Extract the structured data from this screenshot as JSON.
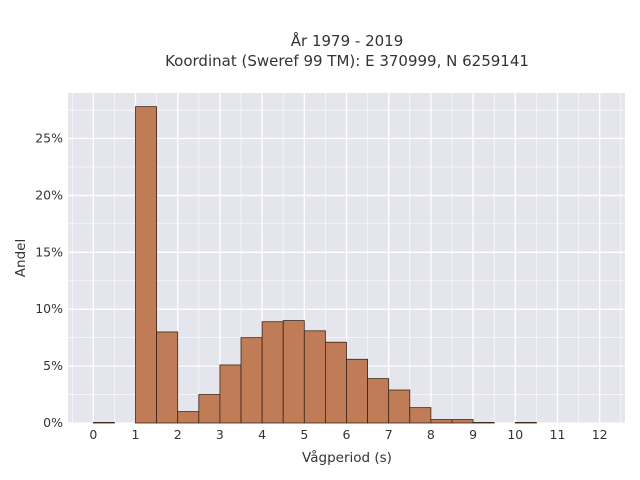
{
  "chart_data": {
    "type": "bar",
    "title_line1": "År 1979 - 2019",
    "title_line2": "Koordinat (Sweref 99 TM): E 370999, N 6259141",
    "xlabel": "Vågperiod (s)",
    "ylabel": "Andel",
    "bin_width": 0.5,
    "bin_starts": [
      0,
      0.5,
      1,
      1.5,
      2,
      2.5,
      3,
      3.5,
      4,
      4.5,
      5,
      5.5,
      6,
      6.5,
      7,
      7.5,
      8,
      8.5,
      9,
      9.5,
      10,
      10.5,
      11,
      11.5,
      12
    ],
    "values": [
      0.05,
      0,
      27.8,
      8.0,
      1.0,
      2.5,
      5.1,
      7.5,
      8.9,
      9.0,
      8.1,
      7.1,
      5.6,
      3.9,
      2.9,
      1.35,
      0.3,
      0.3,
      0.05,
      0,
      0.05,
      0,
      0,
      0,
      0
    ],
    "xlim": [
      -0.6,
      12.6
    ],
    "ylim": [
      0,
      29
    ],
    "x_ticks": [
      "0",
      "1",
      "2",
      "3",
      "4",
      "5",
      "6",
      "7",
      "8",
      "9",
      "10",
      "11",
      "12"
    ],
    "y_ticks": [
      "0%",
      "5%",
      "10%",
      "15%",
      "20%",
      "25%"
    ],
    "grid": true,
    "colors": {
      "bar_fill": "#c07c56",
      "bar_edge": "#3a2418",
      "plot_bg": "#e5e5ee",
      "grid": "#ffffff"
    }
  }
}
